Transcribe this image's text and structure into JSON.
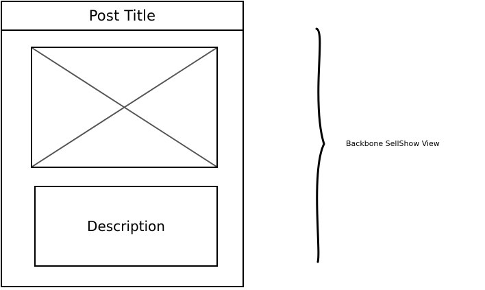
{
  "mockup": {
    "post_title": "Post Title",
    "image_placeholder_icon": "image-placeholder-x-icon",
    "description": "Description"
  },
  "annotation": {
    "brace_icon": "curly-brace-icon",
    "label": "Backbone SellShow View"
  }
}
